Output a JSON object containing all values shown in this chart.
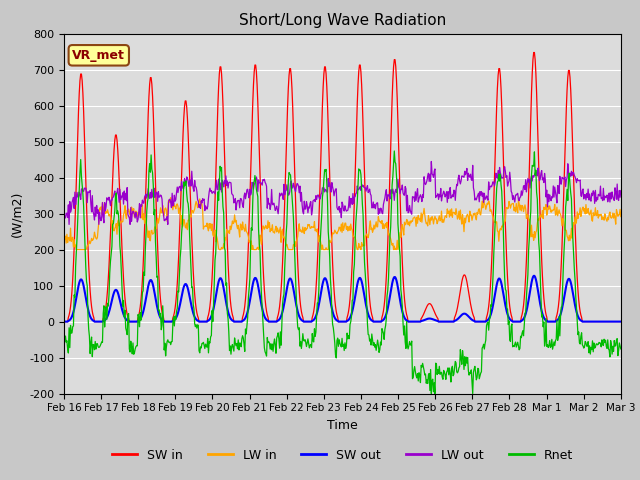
{
  "title": "Short/Long Wave Radiation",
  "ylabel": "(W/m2)",
  "xlabel": "Time",
  "ylim": [
    -200,
    800
  ],
  "yticks": [
    -200,
    -100,
    0,
    100,
    200,
    300,
    400,
    500,
    600,
    700,
    800
  ],
  "annotation": "VR_met",
  "xtick_labels": [
    "Feb 16",
    "Feb 17",
    "Feb 18",
    "Feb 19",
    "Feb 20",
    "Feb 21",
    "Feb 22",
    "Feb 23",
    "Feb 24",
    "Feb 25",
    "Feb 26",
    "Feb 27",
    "Feb 28",
    "Mar 1",
    "Mar 2",
    "Mar 3"
  ],
  "colors": {
    "SW_in": "#ff0000",
    "LW_in": "#ffa500",
    "SW_out": "#0000ff",
    "LW_out": "#9900cc",
    "Rnet": "#00bb00"
  },
  "legend_labels": [
    "SW in",
    "LW in",
    "SW out",
    "LW out",
    "Rnet"
  ],
  "bg_color": "#dcdcdc",
  "n_days": 16,
  "pts_per_day": 48,
  "SW_in_peaks": [
    690,
    520,
    680,
    615,
    710,
    715,
    705,
    710,
    715,
    730,
    50,
    130,
    705,
    750,
    700,
    0
  ],
  "night_rnet": -65,
  "lw_in_base": [
    235,
    310,
    305,
    330,
    270,
    265,
    255,
    260,
    265,
    275,
    285,
    300,
    325,
    315,
    305,
    295
  ]
}
